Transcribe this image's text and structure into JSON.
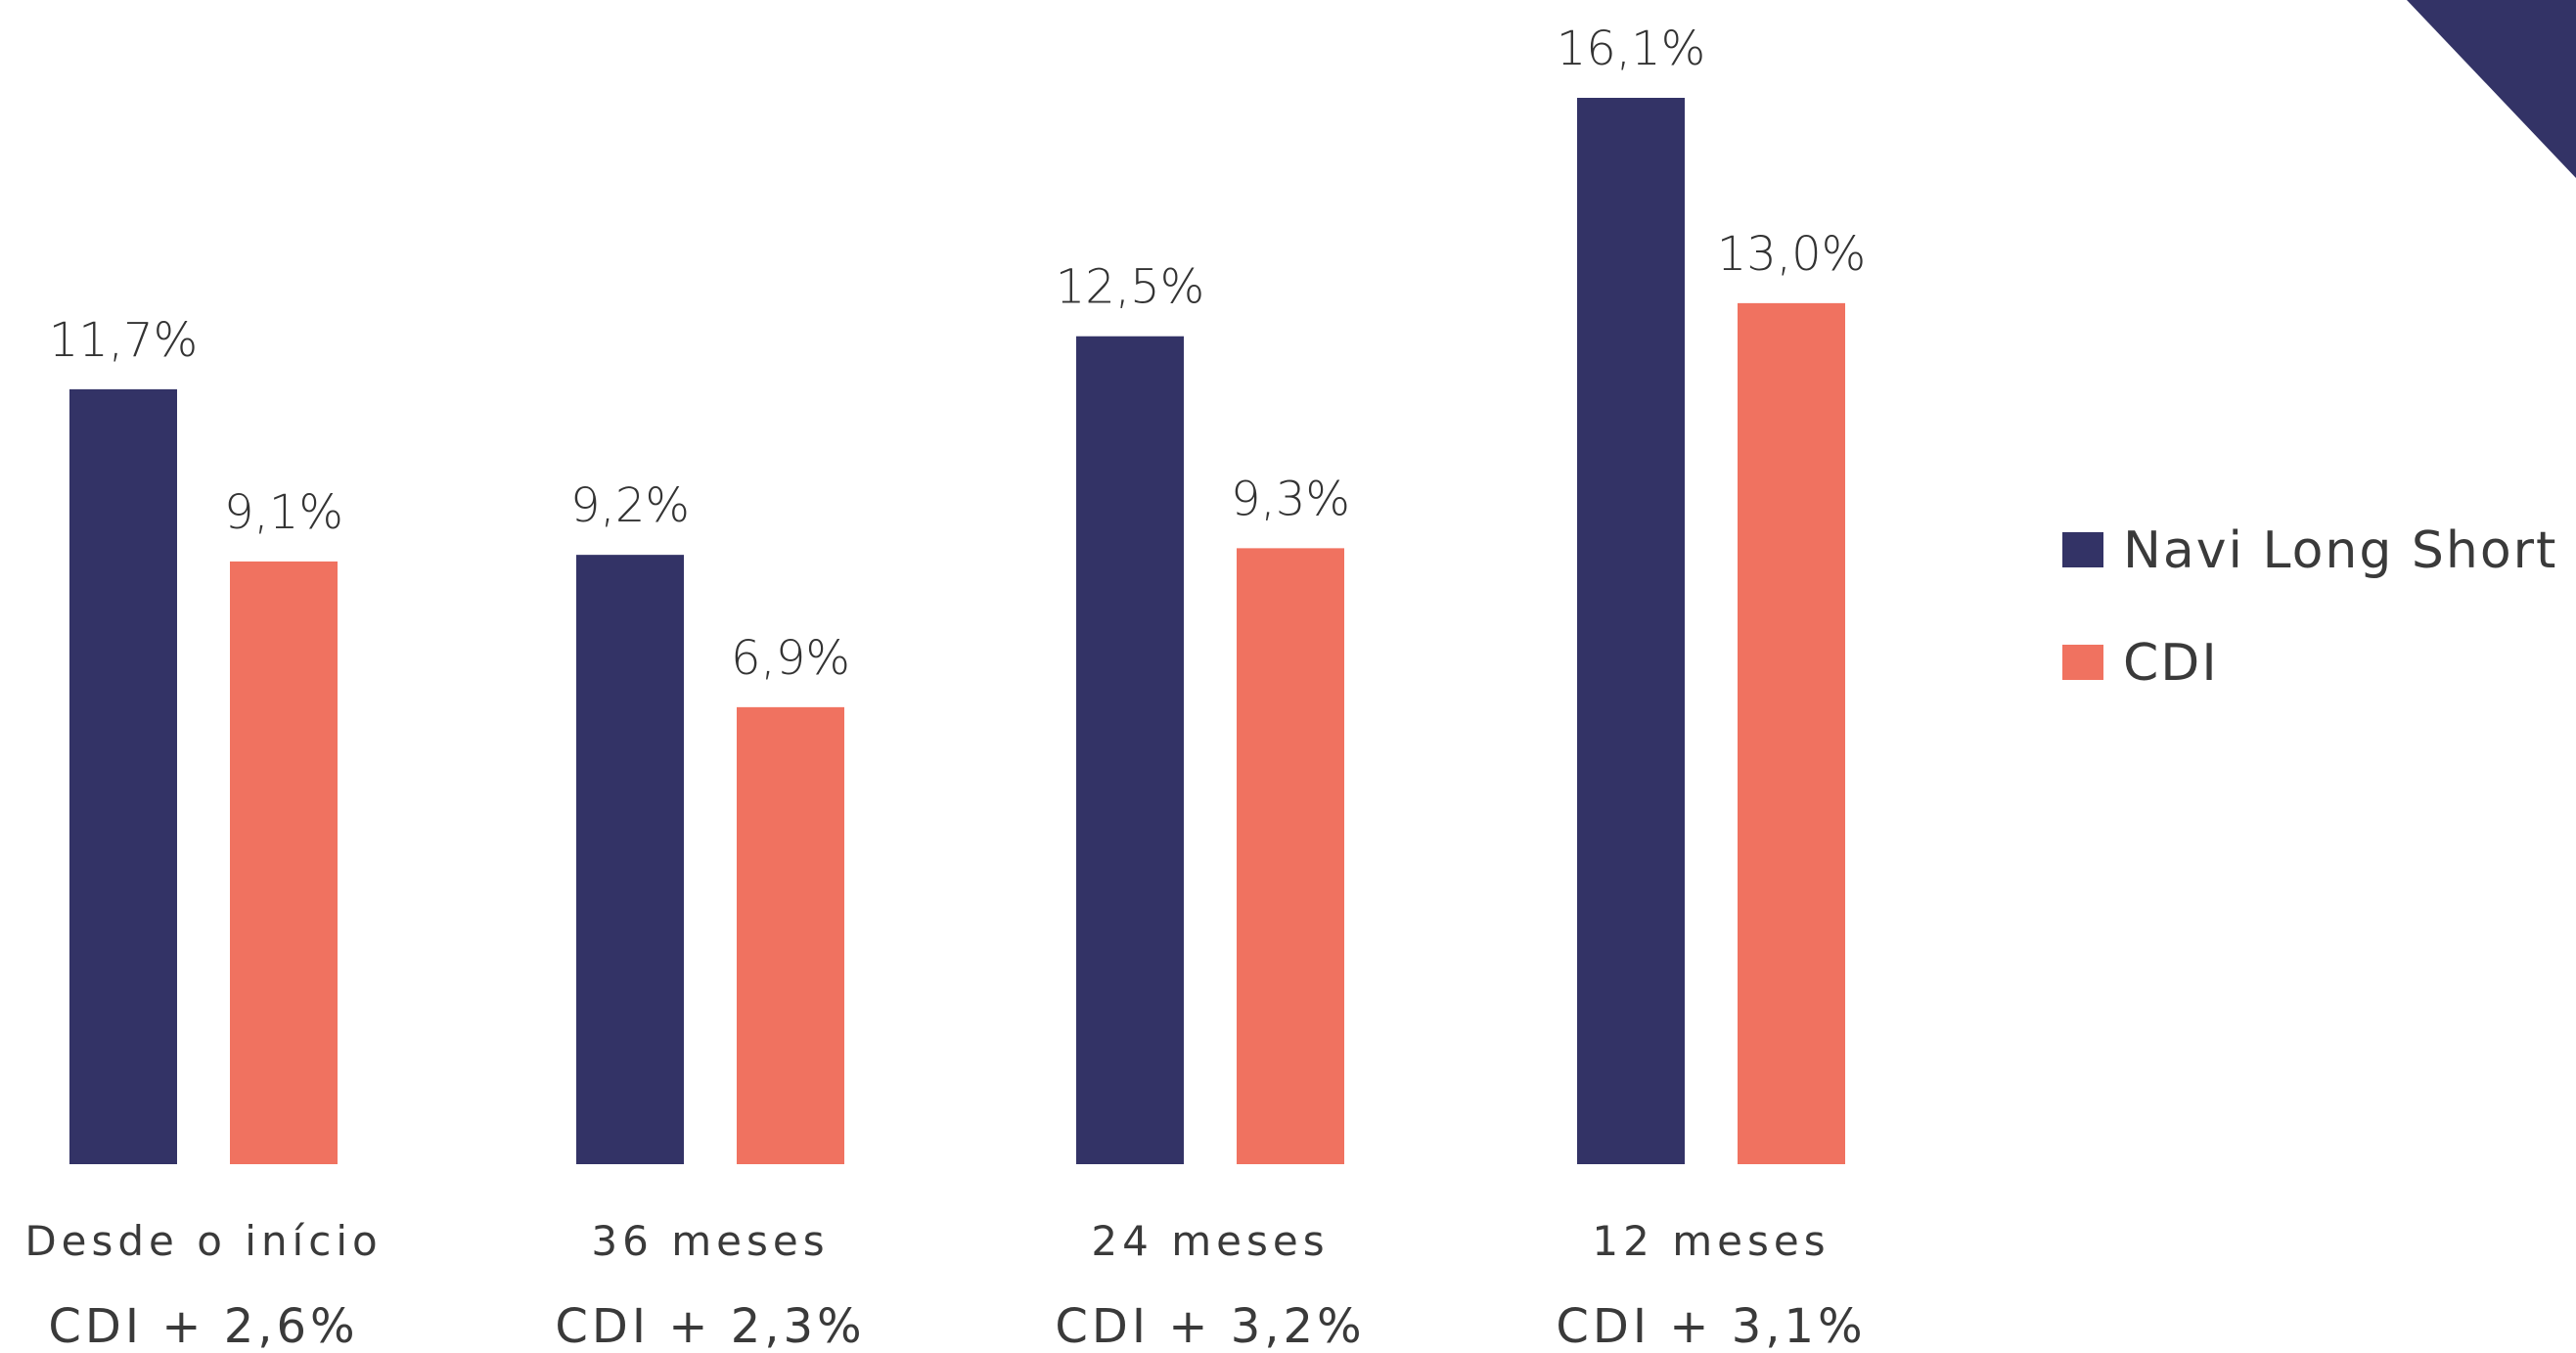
{
  "chart_data": {
    "type": "bar",
    "categories": [
      "Desde o início",
      "36 meses",
      "24 meses",
      "12 meses"
    ],
    "sublabels": [
      "CDI + 2,6%",
      "CDI + 2,3%",
      "CDI + 3,2%",
      "CDI + 3,1%"
    ],
    "series": [
      {
        "name": "Navi Long Short",
        "color": "#333366",
        "values": [
          11.7,
          9.2,
          12.5,
          16.1
        ],
        "labels": [
          "11,7%",
          "9,2%",
          "12,5%",
          "16,1%"
        ]
      },
      {
        "name": "CDI",
        "color": "#f07260",
        "values": [
          9.1,
          6.9,
          9.3,
          13.0
        ],
        "labels": [
          "9,1%",
          "6,9%",
          "9,3%",
          "13,0%"
        ]
      }
    ],
    "ylim": [
      0,
      16.1
    ],
    "grid": false,
    "legend": "right"
  },
  "corner_color": "#333366"
}
